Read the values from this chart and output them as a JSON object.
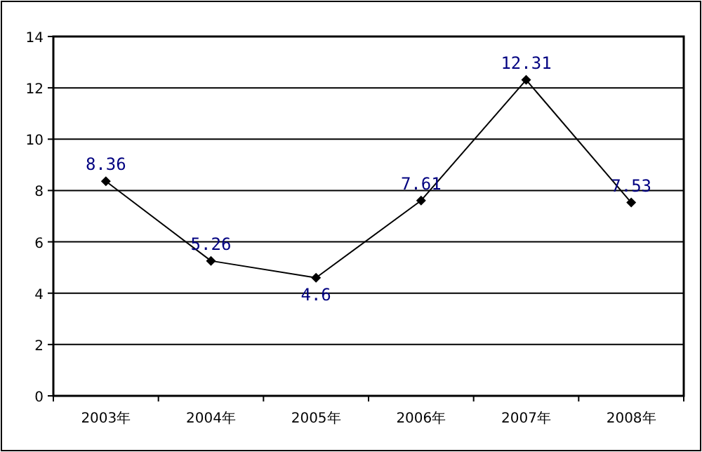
{
  "chart_data": {
    "type": "line",
    "categories": [
      "2003年",
      "2004年",
      "2005年",
      "2006年",
      "2007年",
      "2008年"
    ],
    "series": [
      {
        "color": "#000000",
        "values": [
          8.36,
          5.26,
          4.6,
          7.61,
          12.31,
          7.53
        ]
      }
    ],
    "ylim": [
      0,
      14
    ],
    "yticks": [
      0,
      2,
      4,
      6,
      8,
      10,
      12,
      14
    ],
    "grid": "y",
    "marker": "diamond",
    "line_style": "solid",
    "data_labels": true
  }
}
